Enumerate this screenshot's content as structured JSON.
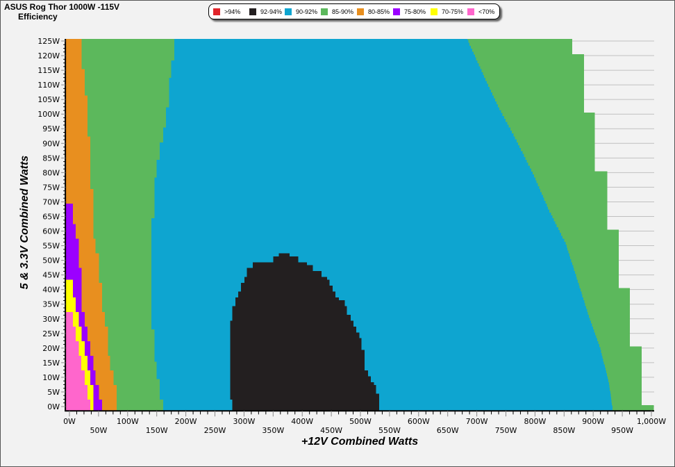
{
  "header": {
    "title": "ASUS Rog Thor 1000W -115V",
    "subtitle": "Efficiency"
  },
  "legend": [
    {
      "label": ">94%",
      "color": "#e0242a"
    },
    {
      "label": "92-94%",
      "color": "#231f20"
    },
    {
      "label": "90-92%",
      "color": "#0ea5d0"
    },
    {
      "label": "85-90%",
      "color": "#5cb85c"
    },
    {
      "label": "80-85%",
      "color": "#e88f1f"
    },
    {
      "label": "75-80%",
      "color": "#9b00ff"
    },
    {
      "label": "70-75%",
      "color": "#ffff00"
    },
    {
      "label": "<70%",
      "color": "#ff66cc"
    }
  ],
  "chart_data": {
    "type": "heatmap",
    "title": "ASUS Rog Thor 1000W -115V",
    "subtitle": "Efficiency",
    "xlabel": "+12V Combined Watts",
    "ylabel": "5 & 3.3V Combined Watts",
    "xlim": [
      -7,
      1005
    ],
    "ylim": [
      -1.5,
      125.7
    ],
    "grid": true,
    "legend_position": "top-center",
    "xticks": [
      "0W",
      "50W",
      "100W",
      "150W",
      "200W",
      "250W",
      "300W",
      "350W",
      "400W",
      "450W",
      "500W",
      "550W",
      "600W",
      "650W",
      "700W",
      "750W",
      "800W",
      "850W",
      "900W",
      "950W",
      "1,000W"
    ],
    "xtick_values": [
      0,
      50,
      100,
      150,
      200,
      250,
      300,
      350,
      400,
      450,
      500,
      550,
      600,
      650,
      700,
      750,
      800,
      850,
      900,
      950,
      1000
    ],
    "yticks": [
      "0W",
      "5W",
      "10W",
      "15W",
      "20W",
      "25W",
      "30W",
      "35W",
      "40W",
      "45W",
      "50W",
      "55W",
      "60W",
      "65W",
      "70W",
      "75W",
      "80W",
      "85W",
      "90W",
      "95W",
      "100W",
      "105W",
      "110W",
      "115W",
      "120W",
      "125W"
    ],
    "ytick_values": [
      0,
      5,
      10,
      15,
      20,
      25,
      30,
      35,
      40,
      45,
      50,
      55,
      60,
      65,
      70,
      75,
      80,
      85,
      90,
      95,
      100,
      105,
      110,
      115,
      120,
      125
    ],
    "boundaries": {
      "pink_end": [
        [
          0,
          36
        ],
        [
          2.5,
          31
        ],
        [
          7.5,
          26
        ],
        [
          12.5,
          20
        ],
        [
          17.5,
          16
        ],
        [
          22.5,
          11
        ],
        [
          27.5,
          6
        ],
        [
          32.3,
          -7
        ]
      ],
      "yellow_end": [
        [
          0,
          41
        ],
        [
          7.5,
          36
        ],
        [
          12.5,
          31
        ],
        [
          17.5,
          26
        ],
        [
          22.5,
          21
        ],
        [
          27.5,
          16
        ],
        [
          32.5,
          11
        ],
        [
          37.5,
          6
        ],
        [
          43.7,
          -7
        ]
      ],
      "purple_end": [
        [
          0,
          56
        ],
        [
          2.5,
          51
        ],
        [
          7.5,
          45
        ],
        [
          12.5,
          41
        ],
        [
          17.5,
          36
        ],
        [
          22.5,
          31
        ],
        [
          27.5,
          26
        ],
        [
          32.5,
          21
        ],
        [
          47.5,
          16
        ],
        [
          57.5,
          11
        ],
        [
          62.5,
          6
        ],
        [
          69.8,
          -7
        ]
      ],
      "orange_end": [
        [
          0,
          81
        ],
        [
          7.5,
          76
        ],
        [
          12.5,
          70
        ],
        [
          17.5,
          66
        ],
        [
          27.5,
          61
        ],
        [
          32.5,
          56
        ],
        [
          42.5,
          51
        ],
        [
          52.5,
          45
        ],
        [
          57.5,
          41
        ],
        [
          75,
          36
        ],
        [
          93,
          31
        ],
        [
          106.7,
          26
        ],
        [
          116,
          21
        ]
      ],
      "green_end": [
        [
          0,
          161
        ],
        [
          2.4,
          155
        ],
        [
          10,
          150
        ],
        [
          16,
          146
        ],
        [
          27,
          141
        ],
        [
          65,
          146
        ],
        [
          79,
          150
        ],
        [
          85,
          155
        ],
        [
          91,
          161
        ],
        [
          96,
          166
        ],
        [
          103,
          171
        ],
        [
          113,
          175
        ],
        [
          119,
          180
        ]
      ],
      "black_start": [
        [
          0,
          280
        ],
        [
          2.4,
          276
        ],
        [
          30,
          280
        ],
        [
          34.4,
          285
        ],
        [
          37.5,
          290
        ],
        [
          40,
          295
        ],
        [
          42.5,
          301
        ],
        [
          45,
          305
        ],
        [
          47.5,
          315
        ],
        [
          50,
          350
        ],
        [
          51.3,
          360
        ],
        [
          52.5,
          null
        ]
      ],
      "black_end": [
        [
          0,
          532
        ],
        [
          5,
          527
        ],
        [
          7.5,
          523
        ],
        [
          9,
          518
        ],
        [
          11,
          513
        ],
        [
          13,
          507
        ],
        [
          20,
          502
        ],
        [
          24,
          498
        ],
        [
          26,
          493
        ],
        [
          27.5,
          488
        ],
        [
          30,
          483
        ],
        [
          32,
          477
        ],
        [
          35,
          473
        ],
        [
          36.5,
          463
        ],
        [
          37.5,
          457
        ],
        [
          39.3,
          452
        ],
        [
          42,
          447
        ],
        [
          43.7,
          443
        ],
        [
          44.6,
          433
        ],
        [
          46.3,
          418
        ],
        [
          48.6,
          408
        ],
        [
          50,
          393
        ],
        [
          51.3,
          378
        ],
        [
          52.5,
          null
        ]
      ],
      "blue_end": [
        [
          0,
          933
        ],
        [
          8.3,
          927
        ],
        [
          20.2,
          912
        ],
        [
          32,
          891
        ],
        [
          43.9,
          872
        ],
        [
          55.8,
          853
        ],
        [
          67.7,
          823
        ],
        [
          79.6,
          797
        ],
        [
          91.5,
          767
        ],
        [
          103,
          736
        ],
        [
          115,
          708
        ],
        [
          126,
          683
        ]
      ],
      "green_right_end": [
        [
          0,
          1004
        ],
        [
          1,
          983
        ],
        [
          21,
          963
        ],
        [
          41,
          944
        ],
        [
          61,
          924
        ],
        [
          81,
          903
        ],
        [
          101,
          884
        ],
        [
          121,
          864
        ]
      ]
    }
  }
}
